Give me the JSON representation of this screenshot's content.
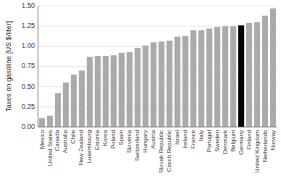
{
  "chart_data": {
    "type": "bar",
    "categories": [
      "Mexico",
      "United States",
      "Canada",
      "Australia",
      "Chile",
      "New Zealand",
      "Luxembourg",
      "Estonia",
      "Korea",
      "Poland",
      "Spain",
      "Slovenia",
      "Switzerland",
      "Hungary",
      "Austria",
      "Slovak Republic",
      "Czech Republic",
      "Israel",
      "Ireland",
      "France",
      "Italy",
      "Portugal",
      "Sweden",
      "Denmark",
      "Belgium",
      "Germany",
      "Finland",
      "United Kingdom",
      "Netherlands",
      "Norway"
    ],
    "values": [
      0.11,
      0.14,
      0.42,
      0.55,
      0.65,
      0.7,
      0.87,
      0.88,
      0.88,
      0.89,
      0.92,
      0.93,
      0.98,
      1.01,
      1.05,
      1.06,
      1.07,
      1.12,
      1.13,
      1.2,
      1.2,
      1.22,
      1.24,
      1.25,
      1.25,
      1.26,
      1.29,
      1.3,
      1.38,
      1.47
    ],
    "colors": [
      "#aaaaaa",
      "#aaaaaa",
      "#aaaaaa",
      "#aaaaaa",
      "#aaaaaa",
      "#aaaaaa",
      "#aaaaaa",
      "#aaaaaa",
      "#aaaaaa",
      "#aaaaaa",
      "#aaaaaa",
      "#aaaaaa",
      "#aaaaaa",
      "#aaaaaa",
      "#aaaaaa",
      "#aaaaaa",
      "#aaaaaa",
      "#aaaaaa",
      "#aaaaaa",
      "#aaaaaa",
      "#aaaaaa",
      "#aaaaaa",
      "#aaaaaa",
      "#aaaaaa",
      "#aaaaaa",
      "#000000",
      "#aaaaaa",
      "#aaaaaa",
      "#aaaaaa",
      "#aaaaaa"
    ],
    "ylabel": "Taxes on gasoline [US $/liter]",
    "ylim": [
      0,
      1.5
    ],
    "yticks": [
      {
        "value": 0,
        "label": "0.00"
      },
      {
        "value": 0.25,
        "label": "0.25"
      },
      {
        "value": 0.5,
        "label": "0.50"
      },
      {
        "value": 0.75,
        "label": "0.75"
      },
      {
        "value": 1,
        "label": "1.00"
      },
      {
        "value": 1.25,
        "label": "1.25"
      },
      {
        "value": 1.5,
        "label": "1.50"
      }
    ],
    "grid": true
  }
}
